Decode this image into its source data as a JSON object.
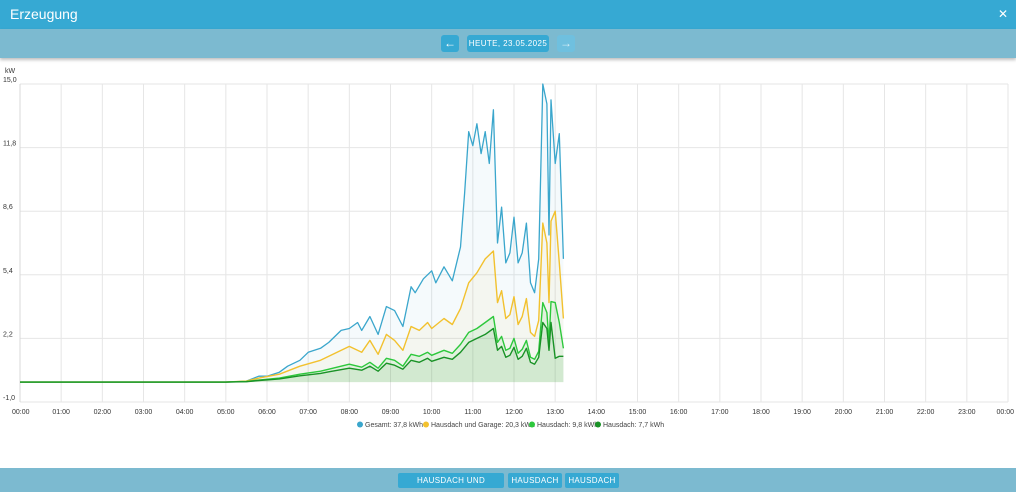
{
  "window": {
    "title": "Erzeugung",
    "close_icon": "close-icon"
  },
  "date_nav": {
    "prev_icon": "arrow-left-icon",
    "date_label": "HEUTE, 23.05.2025",
    "next_icon": "arrow-right-icon"
  },
  "chart_data": {
    "type": "area",
    "ylabel": "kW",
    "ylim": [
      -1.0,
      15.0
    ],
    "yticks": [
      "15,0",
      "11,8",
      "8,6",
      "5,4",
      "2,2",
      "-1,0"
    ],
    "ytick_values": [
      15.0,
      11.8,
      8.6,
      5.4,
      2.2,
      -1.0
    ],
    "xticks": [
      "00:00",
      "01:00",
      "02:00",
      "03:00",
      "04:00",
      "05:00",
      "06:00",
      "07:00",
      "08:00",
      "09:00",
      "10:00",
      "11:00",
      "12:00",
      "13:00",
      "14:00",
      "15:00",
      "16:00",
      "17:00",
      "18:00",
      "19:00",
      "20:00",
      "21:00",
      "22:00",
      "23:00",
      "00:00"
    ],
    "xlim_hours": [
      0,
      24
    ],
    "grid": true,
    "legend_position": "bottom",
    "series": [
      {
        "name": "Gesamt: 37,8 kWh",
        "color": "#3aa6cc",
        "points": [
          [
            0,
            0
          ],
          [
            5.0,
            0
          ],
          [
            5.5,
            0.05
          ],
          [
            5.8,
            0.3
          ],
          [
            6.0,
            0.3
          ],
          [
            6.3,
            0.5
          ],
          [
            6.5,
            0.8
          ],
          [
            6.8,
            1.1
          ],
          [
            7.0,
            1.5
          ],
          [
            7.3,
            1.7
          ],
          [
            7.5,
            2.0
          ],
          [
            7.8,
            2.6
          ],
          [
            8.0,
            2.7
          ],
          [
            8.2,
            3.0
          ],
          [
            8.3,
            2.6
          ],
          [
            8.5,
            3.3
          ],
          [
            8.7,
            2.4
          ],
          [
            8.9,
            3.8
          ],
          [
            9.1,
            3.6
          ],
          [
            9.3,
            2.8
          ],
          [
            9.5,
            4.8
          ],
          [
            9.6,
            4.5
          ],
          [
            9.8,
            5.2
          ],
          [
            10.0,
            5.6
          ],
          [
            10.1,
            5.0
          ],
          [
            10.3,
            5.8
          ],
          [
            10.5,
            5.1
          ],
          [
            10.7,
            6.8
          ],
          [
            10.8,
            9.5
          ],
          [
            10.9,
            12.6
          ],
          [
            11.0,
            11.9
          ],
          [
            11.1,
            13.0
          ],
          [
            11.2,
            11.5
          ],
          [
            11.3,
            12.6
          ],
          [
            11.4,
            11.0
          ],
          [
            11.5,
            13.7
          ],
          [
            11.6,
            7.0
          ],
          [
            11.7,
            8.8
          ],
          [
            11.8,
            6.0
          ],
          [
            11.9,
            6.5
          ],
          [
            12.0,
            8.3
          ],
          [
            12.1,
            6.0
          ],
          [
            12.2,
            6.5
          ],
          [
            12.3,
            8.0
          ],
          [
            12.4,
            5.0
          ],
          [
            12.5,
            4.5
          ],
          [
            12.6,
            6.2
          ],
          [
            12.7,
            15.0
          ],
          [
            12.8,
            14.0
          ],
          [
            12.85,
            7.4
          ],
          [
            12.9,
            14.2
          ],
          [
            13.0,
            11.0
          ],
          [
            13.1,
            12.5
          ],
          [
            13.2,
            6.2
          ]
        ]
      },
      {
        "name": "Hausdach und Garage: 20,3 kWh",
        "color": "#f2c12e",
        "points": [
          [
            0,
            0
          ],
          [
            5.0,
            0
          ],
          [
            5.5,
            0.05
          ],
          [
            5.8,
            0.2
          ],
          [
            6.3,
            0.4
          ],
          [
            6.8,
            0.8
          ],
          [
            7.3,
            1.1
          ],
          [
            7.5,
            1.3
          ],
          [
            8.0,
            1.8
          ],
          [
            8.3,
            1.5
          ],
          [
            8.5,
            2.1
          ],
          [
            8.7,
            1.4
          ],
          [
            8.9,
            2.4
          ],
          [
            9.1,
            2.1
          ],
          [
            9.3,
            1.6
          ],
          [
            9.5,
            2.8
          ],
          [
            9.7,
            2.6
          ],
          [
            9.9,
            3.0
          ],
          [
            10.0,
            2.7
          ],
          [
            10.3,
            3.2
          ],
          [
            10.5,
            2.9
          ],
          [
            10.7,
            3.7
          ],
          [
            10.9,
            5.0
          ],
          [
            11.1,
            5.5
          ],
          [
            11.3,
            6.2
          ],
          [
            11.5,
            6.6
          ],
          [
            11.6,
            4.0
          ],
          [
            11.7,
            4.6
          ],
          [
            11.8,
            3.2
          ],
          [
            11.9,
            3.4
          ],
          [
            12.0,
            4.3
          ],
          [
            12.1,
            2.9
          ],
          [
            12.2,
            3.3
          ],
          [
            12.3,
            4.2
          ],
          [
            12.4,
            2.5
          ],
          [
            12.5,
            2.3
          ],
          [
            12.6,
            3.1
          ],
          [
            12.7,
            8.0
          ],
          [
            12.8,
            7.0
          ],
          [
            12.85,
            4.0
          ],
          [
            12.9,
            8.1
          ],
          [
            13.0,
            8.6
          ],
          [
            13.1,
            6.0
          ],
          [
            13.2,
            3.2
          ]
        ]
      },
      {
        "name": "Hausdach: 9,8 kWh",
        "color": "#2dc83c",
        "points": [
          [
            0,
            0
          ],
          [
            5.0,
            0
          ],
          [
            5.5,
            0.03
          ],
          [
            5.8,
            0.1
          ],
          [
            6.3,
            0.2
          ],
          [
            6.8,
            0.4
          ],
          [
            7.3,
            0.55
          ],
          [
            7.5,
            0.65
          ],
          [
            8.0,
            0.9
          ],
          [
            8.3,
            0.75
          ],
          [
            8.5,
            1.0
          ],
          [
            8.7,
            0.7
          ],
          [
            8.9,
            1.2
          ],
          [
            9.1,
            1.1
          ],
          [
            9.3,
            0.8
          ],
          [
            9.5,
            1.4
          ],
          [
            9.7,
            1.3
          ],
          [
            9.9,
            1.5
          ],
          [
            10.0,
            1.35
          ],
          [
            10.3,
            1.6
          ],
          [
            10.5,
            1.45
          ],
          [
            10.7,
            1.9
          ],
          [
            10.9,
            2.5
          ],
          [
            11.1,
            2.7
          ],
          [
            11.3,
            3.0
          ],
          [
            11.5,
            3.3
          ],
          [
            11.6,
            2.0
          ],
          [
            11.7,
            2.3
          ],
          [
            11.8,
            1.6
          ],
          [
            11.9,
            1.7
          ],
          [
            12.0,
            2.2
          ],
          [
            12.1,
            1.45
          ],
          [
            12.2,
            1.65
          ],
          [
            12.3,
            2.1
          ],
          [
            12.4,
            1.25
          ],
          [
            12.5,
            1.15
          ],
          [
            12.6,
            1.55
          ],
          [
            12.7,
            4.0
          ],
          [
            12.8,
            3.5
          ],
          [
            12.85,
            2.0
          ],
          [
            12.9,
            4.05
          ],
          [
            13.0,
            4.0
          ],
          [
            13.1,
            3.0
          ],
          [
            13.2,
            1.7
          ]
        ]
      },
      {
        "name": "Hausdach: 7,7 kWh",
        "color": "#199226",
        "points": [
          [
            0,
            0
          ],
          [
            5.0,
            0
          ],
          [
            5.5,
            0.02
          ],
          [
            5.8,
            0.08
          ],
          [
            6.3,
            0.16
          ],
          [
            6.8,
            0.32
          ],
          [
            7.3,
            0.44
          ],
          [
            7.5,
            0.52
          ],
          [
            8.0,
            0.7
          ],
          [
            8.3,
            0.6
          ],
          [
            8.5,
            0.8
          ],
          [
            8.7,
            0.55
          ],
          [
            8.9,
            0.95
          ],
          [
            9.1,
            0.85
          ],
          [
            9.3,
            0.65
          ],
          [
            9.5,
            1.1
          ],
          [
            9.7,
            1.0
          ],
          [
            9.9,
            1.2
          ],
          [
            10.0,
            1.05
          ],
          [
            10.3,
            1.25
          ],
          [
            10.5,
            1.15
          ],
          [
            10.7,
            1.5
          ],
          [
            10.9,
            2.0
          ],
          [
            11.1,
            2.2
          ],
          [
            11.3,
            2.4
          ],
          [
            11.5,
            2.7
          ],
          [
            11.6,
            1.6
          ],
          [
            11.7,
            1.8
          ],
          [
            11.8,
            1.25
          ],
          [
            11.9,
            1.35
          ],
          [
            12.0,
            1.75
          ],
          [
            12.1,
            1.15
          ],
          [
            12.2,
            1.3
          ],
          [
            12.3,
            1.7
          ],
          [
            12.4,
            1.0
          ],
          [
            12.5,
            0.9
          ],
          [
            12.6,
            1.25
          ],
          [
            12.7,
            3.0
          ],
          [
            12.8,
            2.7
          ],
          [
            12.85,
            1.6
          ],
          [
            12.9,
            3.0
          ],
          [
            13.0,
            1.2
          ],
          [
            13.1,
            1.3
          ],
          [
            13.2,
            1.3
          ]
        ]
      }
    ]
  },
  "bottom_tabs": [
    "HAUSDACH UND GARAGE",
    "HAUSDACH",
    "HAUSDACH"
  ]
}
